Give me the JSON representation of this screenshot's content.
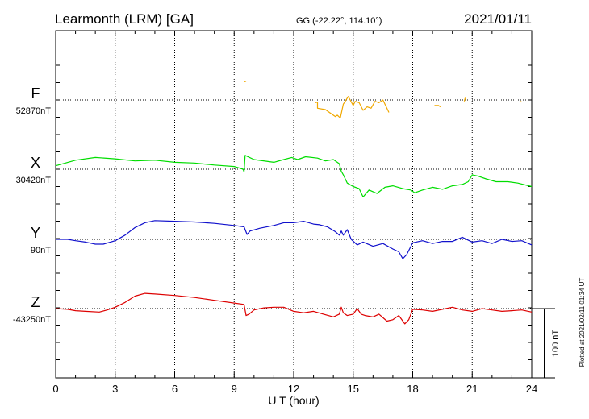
{
  "header": {
    "station": "Learmonth (LRM)  [GA]",
    "coords": "GG (-22.22°, 114.10°)",
    "date": "2021/01/11"
  },
  "side_note": "Plotted at 2021/02/11 01:34 UT",
  "scale_label": "100 nT",
  "chart_data": {
    "type": "line",
    "xlabel": "U T (hour)",
    "ylabel": "",
    "xlim": [
      0,
      24
    ],
    "x_ticks": [
      "0",
      "3",
      "6",
      "9",
      "12",
      "15",
      "18",
      "21",
      "24"
    ],
    "grid": true,
    "scale_bar_nT": 100,
    "units": "nT relative to baseline",
    "series": [
      {
        "name": "F",
        "baseline_label": "52870nT",
        "color": "#f0a800",
        "gaps": true,
        "points": [
          [
            9.5,
            26
          ],
          [
            9.6,
            27
          ],
          [
            13.1,
            -4
          ],
          [
            13.2,
            -3
          ],
          [
            13.2,
            -12
          ],
          [
            13.6,
            -14
          ],
          [
            13.9,
            -20
          ],
          [
            14.1,
            -24
          ],
          [
            14.2,
            -22
          ],
          [
            14.35,
            -26
          ],
          [
            14.5,
            -6
          ],
          [
            14.6,
            -2
          ],
          [
            14.75,
            5
          ],
          [
            15.0,
            -8
          ],
          [
            15.1,
            -2
          ],
          [
            15.3,
            -4
          ],
          [
            15.5,
            -15
          ],
          [
            15.7,
            -10
          ],
          [
            15.9,
            -12
          ],
          [
            16.1,
            -2
          ],
          [
            16.3,
            -4
          ],
          [
            16.5,
            0
          ],
          [
            16.7,
            -12
          ],
          [
            16.8,
            -18
          ],
          [
            19.1,
            -8
          ],
          [
            19.3,
            -8
          ],
          [
            19.4,
            -10
          ],
          [
            20.6,
            -2
          ],
          [
            20.65,
            3
          ],
          [
            23.4,
            -2
          ],
          [
            23.5,
            -3
          ]
        ]
      },
      {
        "name": "X",
        "baseline_label": "30420nT",
        "color": "#00dd00",
        "gaps": false,
        "points": [
          [
            0,
            5
          ],
          [
            1,
            13
          ],
          [
            2,
            17
          ],
          [
            3,
            15
          ],
          [
            4,
            12
          ],
          [
            5,
            13
          ],
          [
            6,
            10
          ],
          [
            7,
            9
          ],
          [
            8,
            6
          ],
          [
            9,
            4
          ],
          [
            9.45,
            0
          ],
          [
            9.5,
            -4
          ],
          [
            9.55,
            20
          ],
          [
            10,
            14
          ],
          [
            11,
            10
          ],
          [
            11.5,
            14
          ],
          [
            11.9,
            17
          ],
          [
            12.2,
            14
          ],
          [
            12.6,
            18
          ],
          [
            13.2,
            16
          ],
          [
            13.6,
            12
          ],
          [
            14,
            14
          ],
          [
            14.3,
            8
          ],
          [
            14.4,
            -3
          ],
          [
            14.5,
            -8
          ],
          [
            14.7,
            -20
          ],
          [
            15,
            -25
          ],
          [
            15.3,
            -28
          ],
          [
            15.5,
            -40
          ],
          [
            15.8,
            -30
          ],
          [
            16.2,
            -35
          ],
          [
            16.6,
            -26
          ],
          [
            17,
            -24
          ],
          [
            17.5,
            -28
          ],
          [
            17.9,
            -30
          ],
          [
            18.1,
            -34
          ],
          [
            18.5,
            -30
          ],
          [
            19,
            -26
          ],
          [
            19.5,
            -29
          ],
          [
            20,
            -24
          ],
          [
            20.5,
            -22
          ],
          [
            20.8,
            -18
          ],
          [
            21,
            -8
          ],
          [
            21.3,
            -10
          ],
          [
            21.7,
            -14
          ],
          [
            22.2,
            -18
          ],
          [
            22.8,
            -18
          ],
          [
            23.3,
            -20
          ],
          [
            24,
            -25
          ]
        ]
      },
      {
        "name": "Y",
        "baseline_label": "90nT",
        "color": "#1111cc",
        "gaps": false,
        "points": [
          [
            0,
            0
          ],
          [
            0.6,
            0
          ],
          [
            1,
            -2
          ],
          [
            1.5,
            -4
          ],
          [
            2,
            -7
          ],
          [
            2.4,
            -7
          ],
          [
            3,
            -2
          ],
          [
            3.5,
            6
          ],
          [
            4,
            17
          ],
          [
            4.5,
            24
          ],
          [
            5,
            27
          ],
          [
            6,
            26
          ],
          [
            7,
            25
          ],
          [
            8,
            23
          ],
          [
            9,
            20
          ],
          [
            9.5,
            18
          ],
          [
            9.65,
            7
          ],
          [
            9.8,
            12
          ],
          [
            10.3,
            16
          ],
          [
            11,
            20
          ],
          [
            11.5,
            24
          ],
          [
            12,
            24
          ],
          [
            12.5,
            26
          ],
          [
            13,
            22
          ],
          [
            13.3,
            21
          ],
          [
            13.7,
            18
          ],
          [
            14.1,
            11
          ],
          [
            14.3,
            6
          ],
          [
            14.4,
            12
          ],
          [
            14.5,
            6
          ],
          [
            14.7,
            14
          ],
          [
            14.9,
            0
          ],
          [
            15.2,
            -8
          ],
          [
            15.5,
            -4
          ],
          [
            16,
            -10
          ],
          [
            16.5,
            -6
          ],
          [
            17,
            -14
          ],
          [
            17.3,
            -18
          ],
          [
            17.5,
            -28
          ],
          [
            17.7,
            -22
          ],
          [
            18,
            -5
          ],
          [
            18.5,
            -2
          ],
          [
            19,
            -6
          ],
          [
            19.5,
            -3
          ],
          [
            20,
            -3
          ],
          [
            20.5,
            3
          ],
          [
            21,
            -4
          ],
          [
            21.5,
            -2
          ],
          [
            22,
            -6
          ],
          [
            22.5,
            0
          ],
          [
            23,
            -3
          ],
          [
            23.5,
            -2
          ],
          [
            24,
            -8
          ]
        ]
      },
      {
        "name": "Z",
        "baseline_label": "-43250nT",
        "color": "#dd0000",
        "gaps": false,
        "points": [
          [
            0,
            0
          ],
          [
            0.6,
            -1
          ],
          [
            1,
            -3
          ],
          [
            1.5,
            -4
          ],
          [
            2.2,
            -5
          ],
          [
            2.6,
            -2
          ],
          [
            3,
            2
          ],
          [
            3.5,
            9
          ],
          [
            4,
            18
          ],
          [
            4.5,
            22
          ],
          [
            5,
            21
          ],
          [
            6,
            19
          ],
          [
            7,
            16
          ],
          [
            8,
            12
          ],
          [
            9,
            8
          ],
          [
            9.5,
            6
          ],
          [
            9.6,
            -10
          ],
          [
            9.75,
            -8
          ],
          [
            10,
            -2
          ],
          [
            10.5,
            1
          ],
          [
            11,
            2
          ],
          [
            11.5,
            2
          ],
          [
            12,
            -4
          ],
          [
            12.5,
            -6
          ],
          [
            13,
            -4
          ],
          [
            13.5,
            -8
          ],
          [
            14,
            -12
          ],
          [
            14.3,
            -8
          ],
          [
            14.4,
            2
          ],
          [
            14.5,
            -6
          ],
          [
            14.7,
            -10
          ],
          [
            15,
            -8
          ],
          [
            15.2,
            0
          ],
          [
            15.4,
            -8
          ],
          [
            15.6,
            -10
          ],
          [
            16,
            -12
          ],
          [
            16.3,
            -8
          ],
          [
            16.7,
            -18
          ],
          [
            17,
            -16
          ],
          [
            17.3,
            -10
          ],
          [
            17.6,
            -22
          ],
          [
            17.8,
            -16
          ],
          [
            18,
            -1
          ],
          [
            18.5,
            -2
          ],
          [
            19,
            -4
          ],
          [
            19.5,
            -1
          ],
          [
            20,
            2
          ],
          [
            20.5,
            -2
          ],
          [
            21,
            -4
          ],
          [
            21.5,
            0
          ],
          [
            22,
            -2
          ],
          [
            22.5,
            -4
          ],
          [
            23,
            -3
          ],
          [
            23.5,
            -2
          ],
          [
            24,
            -5
          ]
        ]
      }
    ]
  }
}
